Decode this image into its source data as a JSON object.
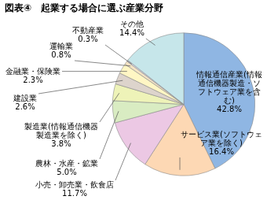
{
  "chart_data": {
    "type": "pie",
    "title": "図表④　起業する場合に選ぶ産業分野",
    "categories": [
      "情報通信産業(情報通信機器製造・ソフトウェア業を含む)",
      "サービス業(ソフトウェア業を除く)",
      "小売・卸売業・飲食店",
      "農林・水産・鉱業",
      "製造業(情報通信機器製造業を除く)",
      "建設業",
      "金融業・保険業",
      "運輸業",
      "不動産業",
      "その他"
    ],
    "values": [
      42.8,
      16.4,
      11.7,
      5.0,
      3.8,
      2.6,
      2.3,
      0.8,
      0.3,
      14.4
    ],
    "value_labels": [
      "42.8%",
      "16.4%",
      "11.7%",
      "5.0%",
      "3.8%",
      "2.6%",
      "2.3%",
      "0.8%",
      "0.3%",
      "14.4%"
    ],
    "colors": [
      "#8fb6e3",
      "#fdd8b4",
      "#ecc8e4",
      "#d9ecc2",
      "#eef3b8",
      "#ddd4cc",
      "#fff6c4",
      "#f4e3c4",
      "#e2e2f2",
      "#c6e6ea"
    ],
    "data_labels": true
  }
}
